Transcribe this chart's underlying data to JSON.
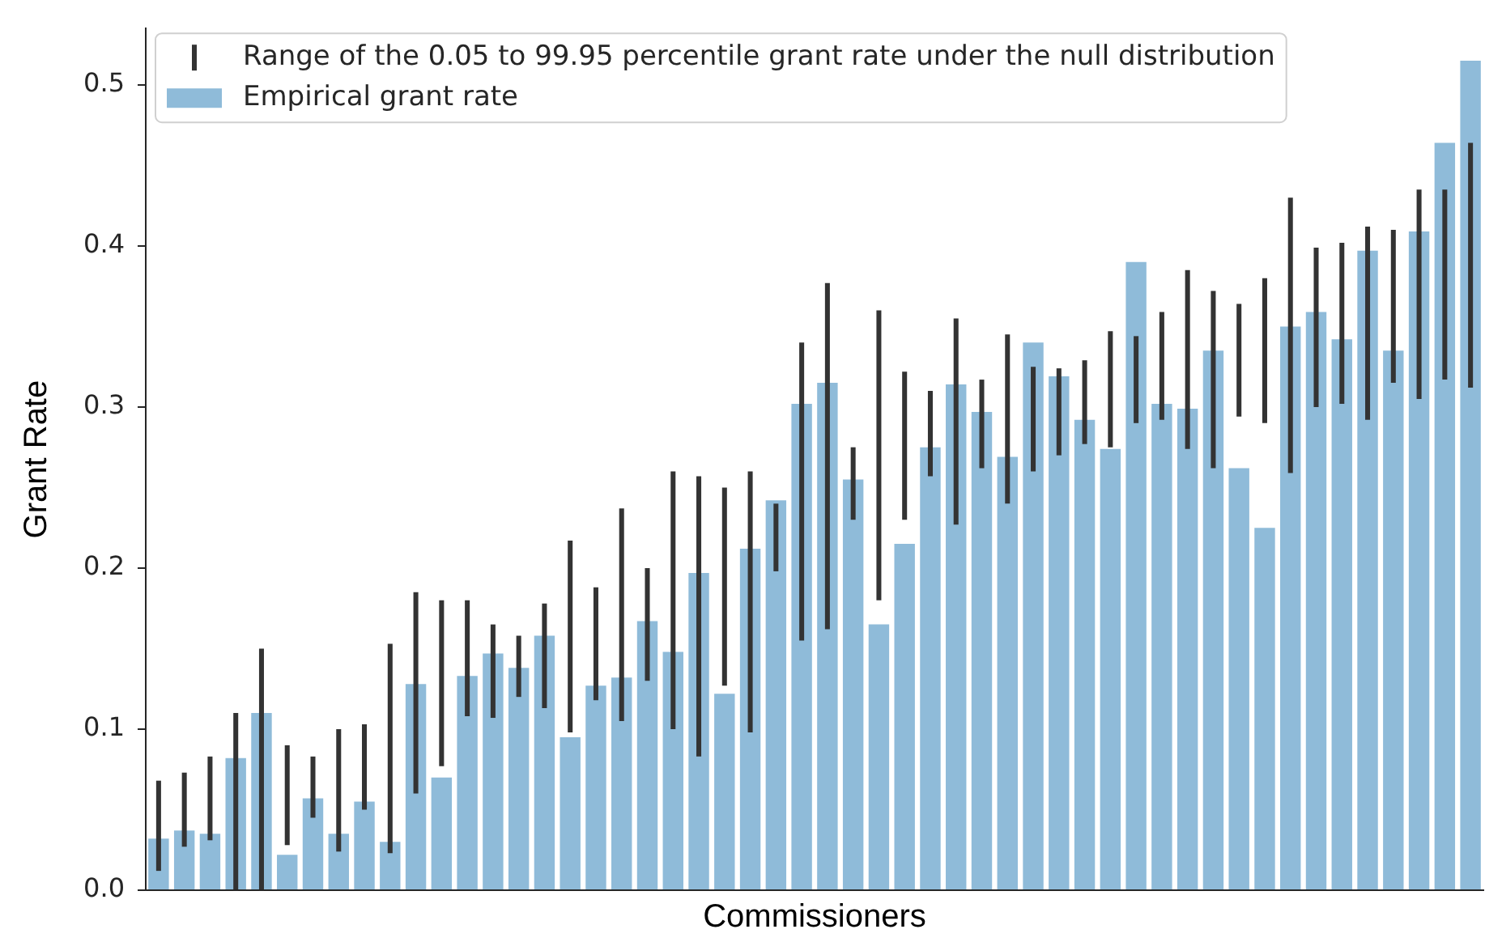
{
  "chart_data": {
    "type": "bar",
    "xlabel": "Commissioners",
    "ylabel": "Grant Rate",
    "categories": [
      null,
      null,
      null,
      null,
      null,
      null,
      null,
      null,
      null,
      null,
      null,
      null,
      null,
      null,
      null,
      null,
      null,
      null,
      null,
      null,
      null,
      null,
      null,
      null,
      null,
      null,
      null,
      null,
      null,
      null,
      null,
      null,
      null,
      null,
      null,
      null,
      null,
      null,
      null,
      null,
      null,
      null,
      null,
      null,
      null,
      null,
      null,
      null,
      null,
      null,
      null,
      null
    ],
    "series": [
      {
        "name": "Range of the 0.05 to 99.95 percentile grant rate under the null distribution",
        "color": "#333333",
        "base": [
          0.012,
          0.027,
          0.031,
          0.0,
          0.0,
          0.028,
          0.045,
          0.024,
          0.05,
          0.023,
          0.06,
          0.077,
          0.108,
          0.107,
          0.12,
          0.113,
          0.098,
          0.118,
          0.105,
          0.13,
          0.1,
          0.083,
          0.127,
          0.098,
          0.198,
          0.155,
          0.162,
          0.23,
          0.18,
          0.23,
          0.257,
          0.227,
          0.262,
          0.24,
          0.26,
          0.27,
          0.277,
          0.275,
          0.29,
          0.292,
          0.274,
          0.262,
          0.294,
          0.29,
          0.259,
          0.3,
          0.302,
          0.292,
          0.315,
          0.305,
          0.317,
          0.312
        ],
        "values": [
          0.056,
          0.046,
          0.052,
          0.11,
          0.15,
          0.062,
          0.038,
          0.076,
          0.053,
          0.13,
          0.125,
          0.103,
          0.072,
          0.058,
          0.038,
          0.065,
          0.119,
          0.07,
          0.132,
          0.07,
          0.16,
          0.174,
          0.123,
          0.162,
          0.042,
          0.185,
          0.215,
          0.045,
          0.18,
          0.092,
          0.053,
          0.128,
          0.055,
          0.105,
          0.065,
          0.054,
          0.052,
          0.072,
          0.054,
          0.067,
          0.111,
          0.11,
          0.07,
          0.09,
          0.171,
          0.099,
          0.1,
          0.12,
          0.095,
          0.13,
          0.118,
          0.152
        ]
      },
      {
        "name": "Empirical grant rate",
        "color": "#8fbbd9",
        "values": [
          0.032,
          0.037,
          0.035,
          0.082,
          0.11,
          0.022,
          0.057,
          0.035,
          0.055,
          0.03,
          0.128,
          0.07,
          0.133,
          0.147,
          0.138,
          0.158,
          0.095,
          0.127,
          0.132,
          0.167,
          0.148,
          0.197,
          0.122,
          0.212,
          0.242,
          0.302,
          0.315,
          0.255,
          0.165,
          0.215,
          0.275,
          0.314,
          0.297,
          0.269,
          0.34,
          0.319,
          0.292,
          0.274,
          0.39,
          0.302,
          0.299,
          0.335,
          0.262,
          0.225,
          0.35,
          0.359,
          0.342,
          0.397,
          0.335,
          0.409,
          0.464,
          0.515
        ]
      }
    ],
    "ylim": [
      0,
      0.535
    ],
    "yticks": [
      {
        "value": 0,
        "label": "0.0"
      },
      0.1,
      0.2,
      0.3,
      0.4,
      0.5
    ],
    "legend": "top left",
    "tick_labels": "y"
  }
}
